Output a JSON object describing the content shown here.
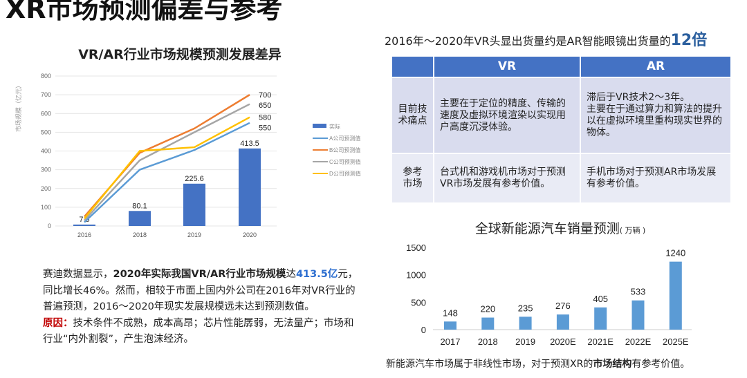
{
  "title": "XR市场预测偏差与参考",
  "left_chart_title": "VR/AR行业市场规模预测发展差异",
  "summary": {
    "text": "2016年～2020年VR头显出货量约是AR智能眼镜出货量的",
    "highlight": "12倍"
  },
  "table": {
    "headers": [
      "",
      "VR",
      "AR"
    ],
    "rows": [
      {
        "label": "目前技术痛点",
        "vr": "主要在于定位的精度、传输的速度及虚拟环境渲染以实现用户高度沉浸体验。",
        "ar_line1": "滞后于VR技术2～3年。",
        "ar_line2": "主要在于通过算力和算法的提升以在虚拟环境里重构现实世界的物体。"
      },
      {
        "label": "参考市场",
        "vr": "台式机和游戏机市场对于预测VR市场发展有参考价值。",
        "ar": "手机市场对于预测AR市场发展有参考价值。"
      }
    ]
  },
  "paragraph": {
    "p1": "赛迪数据显示，",
    "p1_bold": "2020年实际我国VR/AR行业市场规模",
    "p1b": "达",
    "p1_blue": "413.5亿",
    "p2": "元，同比增长46%。然而，相较于市面上国内外公司在2016年对VR行业的普遍预测，2016～2020年现实发展规模远未达到预测数值。",
    "reason_label": "原因：",
    "reason": "技术条件不成熟，成本高昂；芯片性能孱弱，无法量产；市场和行业“内外割裂”，产生泡沫经济。"
  },
  "right_chart_title": "全球新能源汽车销量预测",
  "right_chart_unit": "( 万辆 )",
  "caption": {
    "pre": "新能源汽车市场属于非线性市场，对于预测XR的",
    "bold": "市场结构",
    "post": "有参考价值。"
  },
  "chart_data": [
    {
      "type": "bar+line",
      "title": "VR/AR行业市场规模预测发展差异",
      "ylabel": "市场规模（亿元）",
      "ylim": [
        0,
        800
      ],
      "yticks": [
        0,
        100,
        200,
        300,
        400,
        500,
        600,
        700,
        800
      ],
      "categories": [
        "2016",
        "2018",
        "2019",
        "2020"
      ],
      "bars": {
        "name": "实际",
        "values": [
          7.5,
          80.1,
          225.6,
          413.5
        ],
        "color": "#4472c4"
      },
      "series": [
        {
          "name": "A公司预测值",
          "values": [
            20,
            300,
            405,
            550
          ],
          "color": "#5b9bd5",
          "end_label": "550"
        },
        {
          "name": "B公司预测值",
          "values": [
            50,
            390,
            520,
            700
          ],
          "color": "#ed7d31",
          "end_label": "700"
        },
        {
          "name": "C公司预测值",
          "values": [
            30,
            350,
            500,
            650
          ],
          "color": "#a5a5a5",
          "end_label": "650"
        },
        {
          "name": "D公司预测值",
          "values": [
            40,
            400,
            420,
            580
          ],
          "color": "#ffc000",
          "end_label": "580"
        }
      ],
      "legend": "right"
    },
    {
      "type": "bar",
      "title": "全球新能源汽车销量预测",
      "unit": "万辆",
      "ylim": [
        0,
        1500
      ],
      "yticks": [
        0,
        500,
        1000,
        1500
      ],
      "categories": [
        "2017",
        "2018",
        "2019",
        "2020E",
        "2021E",
        "2022E",
        "2025E"
      ],
      "values": [
        148,
        220,
        235,
        276,
        405,
        533,
        1240
      ],
      "color": "#5b9bd5"
    }
  ]
}
